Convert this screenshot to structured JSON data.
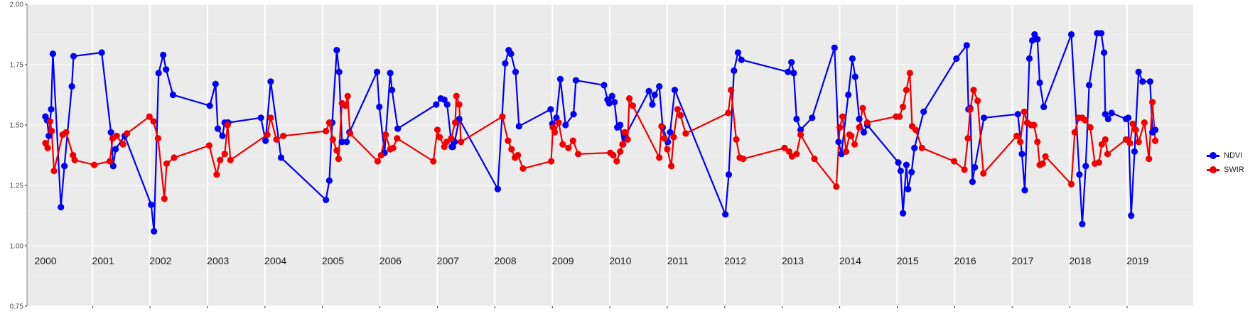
{
  "chart_data": {
    "type": "line",
    "title": "",
    "xlabel": "",
    "ylabel": "",
    "ylim": [
      0.75,
      2.0
    ],
    "xlim": [
      1999.68,
      2019.97
    ],
    "y_ticks": [
      "0.75",
      "1.00",
      "1.25",
      "1.50",
      "1.75",
      "2.00"
    ],
    "facet_labels": [
      "2000",
      "2001",
      "2002",
      "2003",
      "2004",
      "2005",
      "2006",
      "2007",
      "2008",
      "2009",
      "2010",
      "2011",
      "2012",
      "2013",
      "2014",
      "2015",
      "2016",
      "2017",
      "2018",
      "2019"
    ],
    "grid": true,
    "legend_position": "right",
    "series": [
      {
        "name": "NDVI",
        "color": "#0000ee",
        "points": [
          [
            2000.0,
            1.535
          ],
          [
            2000.03,
            1.52
          ],
          [
            2000.06,
            1.455
          ],
          [
            2000.1,
            1.565
          ],
          [
            2000.13,
            1.795
          ],
          [
            2000.27,
            1.16
          ],
          [
            2000.33,
            1.33
          ],
          [
            2000.46,
            1.66
          ],
          [
            2000.49,
            1.785
          ],
          [
            2000.98,
            1.8
          ],
          [
            2001.14,
            1.47
          ],
          [
            2001.18,
            1.33
          ],
          [
            2001.22,
            1.4
          ],
          [
            2001.38,
            1.455
          ],
          [
            2001.84,
            1.17
          ],
          [
            2001.89,
            1.06
          ],
          [
            2001.97,
            1.715
          ],
          [
            2002.05,
            1.79
          ],
          [
            2002.1,
            1.73
          ],
          [
            2002.22,
            1.625
          ],
          [
            2002.86,
            1.58
          ],
          [
            2002.96,
            1.67
          ],
          [
            2003.0,
            1.485
          ],
          [
            2003.08,
            1.455
          ],
          [
            2003.12,
            1.51
          ],
          [
            2003.17,
            1.51
          ],
          [
            2003.18,
            1.51
          ],
          [
            2003.75,
            1.53
          ],
          [
            2003.83,
            1.435
          ],
          [
            2003.92,
            1.68
          ],
          [
            2004.1,
            1.365
          ],
          [
            2004.88,
            1.19
          ],
          [
            2004.94,
            1.27
          ],
          [
            2004.99,
            1.51
          ],
          [
            2005.07,
            1.81
          ],
          [
            2005.11,
            1.72
          ],
          [
            2005.16,
            1.43
          ],
          [
            2005.24,
            1.43
          ],
          [
            2005.29,
            1.47
          ],
          [
            2005.77,
            1.72
          ],
          [
            2005.81,
            1.575
          ],
          [
            2005.9,
            1.385
          ],
          [
            2006.0,
            1.715
          ],
          [
            2006.03,
            1.645
          ],
          [
            2006.13,
            1.485
          ],
          [
            2006.8,
            1.585
          ],
          [
            2006.88,
            1.61
          ],
          [
            2006.94,
            1.605
          ],
          [
            2006.99,
            1.585
          ],
          [
            2007.07,
            1.41
          ],
          [
            2007.09,
            1.41
          ],
          [
            2007.12,
            1.43
          ],
          [
            2007.2,
            1.525
          ],
          [
            2007.87,
            1.235
          ],
          [
            2008.0,
            1.755
          ],
          [
            2008.06,
            1.81
          ],
          [
            2008.1,
            1.795
          ],
          [
            2008.18,
            1.72
          ],
          [
            2008.24,
            1.495
          ],
          [
            2008.79,
            1.565
          ],
          [
            2008.82,
            1.505
          ],
          [
            2008.89,
            1.53
          ],
          [
            2008.96,
            1.69
          ],
          [
            2009.05,
            1.5
          ],
          [
            2009.19,
            1.545
          ],
          [
            2009.23,
            1.685
          ],
          [
            2009.72,
            1.665
          ],
          [
            2009.78,
            1.605
          ],
          [
            2009.81,
            1.59
          ],
          [
            2009.86,
            1.62
          ],
          [
            2009.9,
            1.595
          ],
          [
            2009.95,
            1.49
          ],
          [
            2010.0,
            1.5
          ],
          [
            2010.05,
            1.42
          ],
          [
            2010.08,
            1.45
          ],
          [
            2010.5,
            1.64
          ],
          [
            2010.56,
            1.585
          ],
          [
            2010.6,
            1.625
          ],
          [
            2010.68,
            1.66
          ],
          [
            2010.74,
            1.49
          ],
          [
            2010.83,
            1.43
          ],
          [
            2010.87,
            1.47
          ],
          [
            2010.95,
            1.645
          ],
          [
            2011.83,
            1.13
          ],
          [
            2011.89,
            1.295
          ],
          [
            2011.98,
            1.725
          ],
          [
            2012.05,
            1.8
          ],
          [
            2012.11,
            1.77
          ],
          [
            2012.92,
            1.72
          ],
          [
            2012.98,
            1.76
          ],
          [
            2013.02,
            1.715
          ],
          [
            2013.07,
            1.525
          ],
          [
            2013.14,
            1.48
          ],
          [
            2013.34,
            1.53
          ],
          [
            2013.73,
            1.82
          ],
          [
            2013.8,
            1.43
          ],
          [
            2013.85,
            1.38
          ],
          [
            2013.97,
            1.625
          ],
          [
            2014.04,
            1.775
          ],
          [
            2014.09,
            1.7
          ],
          [
            2014.16,
            1.525
          ],
          [
            2014.24,
            1.47
          ],
          [
            2014.3,
            1.5
          ],
          [
            2014.84,
            1.345
          ],
          [
            2014.88,
            1.31
          ],
          [
            2014.92,
            1.135
          ],
          [
            2014.98,
            1.335
          ],
          [
            2015.01,
            1.235
          ],
          [
            2015.07,
            1.305
          ],
          [
            2015.12,
            1.405
          ],
          [
            2015.28,
            1.555
          ],
          [
            2015.85,
            1.775
          ],
          [
            2016.03,
            1.83
          ],
          [
            2016.06,
            1.565
          ],
          [
            2016.09,
            1.57
          ],
          [
            2016.13,
            1.265
          ],
          [
            2016.17,
            1.325
          ],
          [
            2016.33,
            1.53
          ],
          [
            2016.92,
            1.545
          ],
          [
            2016.99,
            1.38
          ],
          [
            2017.04,
            1.23
          ],
          [
            2017.12,
            1.775
          ],
          [
            2017.17,
            1.85
          ],
          [
            2017.21,
            1.875
          ],
          [
            2017.26,
            1.855
          ],
          [
            2017.3,
            1.675
          ],
          [
            2017.37,
            1.575
          ],
          [
            2017.85,
            1.875
          ],
          [
            2017.99,
            1.295
          ],
          [
            2018.04,
            1.09
          ],
          [
            2018.1,
            1.33
          ],
          [
            2018.16,
            1.665
          ],
          [
            2018.3,
            1.88
          ],
          [
            2018.37,
            1.88
          ],
          [
            2018.42,
            1.8
          ],
          [
            2018.44,
            1.545
          ],
          [
            2018.49,
            1.525
          ],
          [
            2018.55,
            1.55
          ],
          [
            2018.8,
            1.525
          ],
          [
            2018.84,
            1.53
          ],
          [
            2018.89,
            1.125
          ],
          [
            2018.95,
            1.39
          ],
          [
            2019.02,
            1.72
          ],
          [
            2019.09,
            1.68
          ],
          [
            2019.22,
            1.68
          ],
          [
            2019.26,
            1.47
          ],
          [
            2019.31,
            1.48
          ]
        ]
      },
      {
        "name": "SWIR",
        "color": "#ee0000",
        "points": [
          [
            2000.0,
            1.425
          ],
          [
            2000.04,
            1.405
          ],
          [
            2000.08,
            1.515
          ],
          [
            2000.11,
            1.475
          ],
          [
            2000.15,
            1.31
          ],
          [
            2000.3,
            1.46
          ],
          [
            2000.36,
            1.47
          ],
          [
            2000.48,
            1.375
          ],
          [
            2000.51,
            1.355
          ],
          [
            2000.85,
            1.335
          ],
          [
            2001.12,
            1.35
          ],
          [
            2001.17,
            1.445
          ],
          [
            2001.24,
            1.455
          ],
          [
            2001.35,
            1.42
          ],
          [
            2001.42,
            1.465
          ],
          [
            2001.81,
            1.535
          ],
          [
            2001.88,
            1.515
          ],
          [
            2001.96,
            1.445
          ],
          [
            2002.07,
            1.195
          ],
          [
            2002.11,
            1.34
          ],
          [
            2002.24,
            1.365
          ],
          [
            2002.85,
            1.415
          ],
          [
            2002.98,
            1.295
          ],
          [
            2003.04,
            1.355
          ],
          [
            2003.12,
            1.38
          ],
          [
            2003.17,
            1.5
          ],
          [
            2003.22,
            1.355
          ],
          [
            2003.86,
            1.46
          ],
          [
            2003.92,
            1.53
          ],
          [
            2004.02,
            1.44
          ],
          [
            2004.14,
            1.455
          ],
          [
            2004.88,
            1.475
          ],
          [
            2004.94,
            1.51
          ],
          [
            2005.0,
            1.44
          ],
          [
            2005.07,
            1.395
          ],
          [
            2005.1,
            1.36
          ],
          [
            2005.16,
            1.59
          ],
          [
            2005.22,
            1.58
          ],
          [
            2005.26,
            1.62
          ],
          [
            2005.3,
            1.465
          ],
          [
            2005.78,
            1.35
          ],
          [
            2005.84,
            1.375
          ],
          [
            2005.92,
            1.46
          ],
          [
            2006.0,
            1.4
          ],
          [
            2006.05,
            1.405
          ],
          [
            2006.12,
            1.445
          ],
          [
            2006.75,
            1.35
          ],
          [
            2006.82,
            1.48
          ],
          [
            2006.86,
            1.45
          ],
          [
            2006.94,
            1.41
          ],
          [
            2006.98,
            1.43
          ],
          [
            2007.06,
            1.445
          ],
          [
            2007.13,
            1.51
          ],
          [
            2007.15,
            1.62
          ],
          [
            2007.2,
            1.585
          ],
          [
            2007.23,
            1.43
          ],
          [
            2007.95,
            1.535
          ],
          [
            2008.05,
            1.435
          ],
          [
            2008.11,
            1.4
          ],
          [
            2008.17,
            1.365
          ],
          [
            2008.22,
            1.375
          ],
          [
            2008.31,
            1.32
          ],
          [
            2008.8,
            1.35
          ],
          [
            2008.83,
            1.49
          ],
          [
            2008.86,
            1.47
          ],
          [
            2008.93,
            1.51
          ],
          [
            2009.0,
            1.42
          ],
          [
            2009.1,
            1.405
          ],
          [
            2009.18,
            1.435
          ],
          [
            2009.27,
            1.38
          ],
          [
            2009.83,
            1.385
          ],
          [
            2009.88,
            1.375
          ],
          [
            2009.94,
            1.35
          ],
          [
            2010.0,
            1.39
          ],
          [
            2010.04,
            1.42
          ],
          [
            2010.08,
            1.47
          ],
          [
            2010.13,
            1.44
          ],
          [
            2010.16,
            1.61
          ],
          [
            2010.22,
            1.58
          ],
          [
            2010.68,
            1.365
          ],
          [
            2010.72,
            1.495
          ],
          [
            2010.77,
            1.445
          ],
          [
            2010.82,
            1.4
          ],
          [
            2010.89,
            1.33
          ],
          [
            2010.93,
            1.45
          ],
          [
            2011.0,
            1.565
          ],
          [
            2011.05,
            1.54
          ],
          [
            2011.14,
            1.465
          ],
          [
            2011.88,
            1.55
          ],
          [
            2011.93,
            1.645
          ],
          [
            2012.02,
            1.44
          ],
          [
            2012.08,
            1.365
          ],
          [
            2012.14,
            1.36
          ],
          [
            2012.86,
            1.405
          ],
          [
            2012.94,
            1.39
          ],
          [
            2012.99,
            1.37
          ],
          [
            2013.07,
            1.38
          ],
          [
            2013.14,
            1.46
          ],
          [
            2013.38,
            1.36
          ],
          [
            2013.76,
            1.245
          ],
          [
            2013.82,
            1.49
          ],
          [
            2013.87,
            1.535
          ],
          [
            2013.93,
            1.39
          ],
          [
            2013.99,
            1.46
          ],
          [
            2014.02,
            1.455
          ],
          [
            2014.08,
            1.42
          ],
          [
            2014.16,
            1.49
          ],
          [
            2014.22,
            1.57
          ],
          [
            2014.3,
            1.51
          ],
          [
            2014.8,
            1.535
          ],
          [
            2014.86,
            1.535
          ],
          [
            2014.92,
            1.575
          ],
          [
            2014.98,
            1.645
          ],
          [
            2015.04,
            1.715
          ],
          [
            2015.08,
            1.495
          ],
          [
            2015.14,
            1.48
          ],
          [
            2015.25,
            1.405
          ],
          [
            2015.81,
            1.35
          ],
          [
            2015.99,
            1.315
          ],
          [
            2016.05,
            1.445
          ],
          [
            2016.09,
            1.565
          ],
          [
            2016.15,
            1.645
          ],
          [
            2016.22,
            1.6
          ],
          [
            2016.32,
            1.3
          ],
          [
            2016.9,
            1.455
          ],
          [
            2016.96,
            1.43
          ],
          [
            2017.03,
            1.555
          ],
          [
            2017.08,
            1.51
          ],
          [
            2017.15,
            1.5
          ],
          [
            2017.2,
            1.5
          ],
          [
            2017.26,
            1.43
          ],
          [
            2017.3,
            1.335
          ],
          [
            2017.35,
            1.34
          ],
          [
            2017.4,
            1.37
          ],
          [
            2017.85,
            1.255
          ],
          [
            2017.91,
            1.47
          ],
          [
            2017.98,
            1.53
          ],
          [
            2018.04,
            1.53
          ],
          [
            2018.09,
            1.52
          ],
          [
            2018.18,
            1.49
          ],
          [
            2018.26,
            1.34
          ],
          [
            2018.33,
            1.345
          ],
          [
            2018.38,
            1.42
          ],
          [
            2018.44,
            1.44
          ],
          [
            2018.48,
            1.38
          ],
          [
            2018.8,
            1.44
          ],
          [
            2018.87,
            1.425
          ],
          [
            2018.92,
            1.505
          ],
          [
            2018.97,
            1.48
          ],
          [
            2019.02,
            1.43
          ],
          [
            2019.12,
            1.51
          ],
          [
            2019.2,
            1.36
          ],
          [
            2019.26,
            1.595
          ],
          [
            2019.31,
            1.435
          ]
        ]
      }
    ]
  }
}
